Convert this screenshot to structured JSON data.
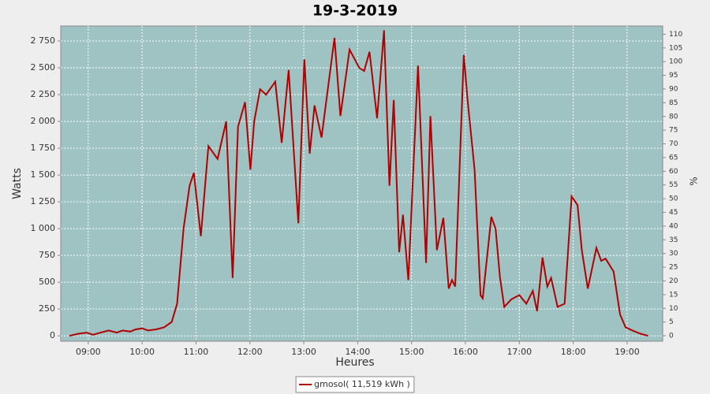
{
  "chart_data": {
    "type": "line",
    "title": "19-3-2019",
    "xlabel": "Heures",
    "ylabel": "Watts",
    "y2label": "%",
    "x": [
      8.65,
      8.82,
      8.97,
      9.09,
      9.23,
      9.38,
      9.53,
      9.64,
      9.78,
      9.88,
      10.0,
      10.11,
      10.26,
      10.41,
      10.55,
      10.65,
      10.77,
      10.88,
      10.96,
      11.09,
      11.23,
      11.4,
      11.56,
      11.68,
      11.78,
      11.91,
      12.01,
      12.08,
      12.19,
      12.3,
      12.47,
      12.59,
      12.72,
      12.9,
      13.01,
      13.11,
      13.2,
      13.33,
      13.57,
      13.68,
      13.85,
      14.03,
      14.12,
      14.22,
      14.36,
      14.49,
      14.59,
      14.67,
      14.77,
      14.84,
      14.94,
      15.12,
      15.27,
      15.35,
      15.47,
      15.59,
      15.69,
      15.75,
      15.81,
      15.97,
      16.04,
      16.17,
      16.28,
      16.32,
      16.48,
      16.56,
      16.64,
      16.72,
      16.85,
      17.0,
      17.13,
      17.25,
      17.33,
      17.43,
      17.52,
      17.59,
      17.71,
      17.84,
      17.97,
      18.08,
      18.16,
      18.27,
      18.43,
      18.52,
      18.6,
      18.75,
      18.87,
      18.97,
      19.1,
      19.25,
      19.39
    ],
    "series": [
      {
        "name": "gmosol( 11,519 kWh )",
        "color": "#b00000",
        "values": [
          0,
          20,
          30,
          10,
          30,
          50,
          30,
          50,
          40,
          60,
          70,
          50,
          60,
          80,
          130,
          300,
          1000,
          1400,
          1520,
          930,
          1770,
          1650,
          2000,
          540,
          1950,
          2180,
          1550,
          2000,
          2300,
          2250,
          2370,
          1800,
          2480,
          1050,
          2580,
          1700,
          2150,
          1850,
          2780,
          2050,
          2670,
          2500,
          2470,
          2650,
          2030,
          2850,
          1400,
          2200,
          780,
          1130,
          520,
          2520,
          680,
          2050,
          800,
          1100,
          440,
          520,
          460,
          2620,
          2200,
          1550,
          380,
          350,
          1110,
          1000,
          550,
          270,
          340,
          380,
          300,
          420,
          230,
          730,
          460,
          540,
          270,
          300,
          1300,
          1220,
          800,
          440,
          820,
          700,
          720,
          600,
          200,
          80,
          50,
          20,
          0
        ]
      }
    ],
    "xlim": [
      8.49,
      19.66
    ],
    "ylim": [
      -50,
      2890
    ],
    "y2lim": [
      -2,
      113
    ],
    "xticks": [
      {
        "value": 9,
        "label": "09:00"
      },
      {
        "value": 10,
        "label": "10:00"
      },
      {
        "value": 11,
        "label": "11:00"
      },
      {
        "value": 12,
        "label": "12:00"
      },
      {
        "value": 13,
        "label": "13:00"
      },
      {
        "value": 14,
        "label": "14:00"
      },
      {
        "value": 15,
        "label": "15:00"
      },
      {
        "value": 16,
        "label": "16:00"
      },
      {
        "value": 17,
        "label": "17:00"
      },
      {
        "value": 18,
        "label": "18:00"
      },
      {
        "value": 19,
        "label": "19:00"
      }
    ],
    "yticks": [
      0,
      250,
      500,
      750,
      {
        "value": 1000,
        "label": "1 000"
      },
      {
        "value": 1250,
        "label": "1 250"
      },
      {
        "value": 1500,
        "label": "1 500"
      },
      {
        "value": 1750,
        "label": "1 750"
      },
      {
        "value": 2000,
        "label": "2 000"
      },
      {
        "value": 2250,
        "label": "2 250"
      },
      {
        "value": 2500,
        "label": "2 500"
      },
      {
        "value": 2750,
        "label": "2 750"
      }
    ],
    "y2ticks": [
      0,
      5,
      10,
      15,
      20,
      25,
      30,
      35,
      40,
      45,
      50,
      55,
      60,
      65,
      70,
      75,
      80,
      85,
      90,
      95,
      100,
      105,
      110
    ],
    "grid": true,
    "legend": "bottom",
    "background": "#9fc3c3"
  }
}
